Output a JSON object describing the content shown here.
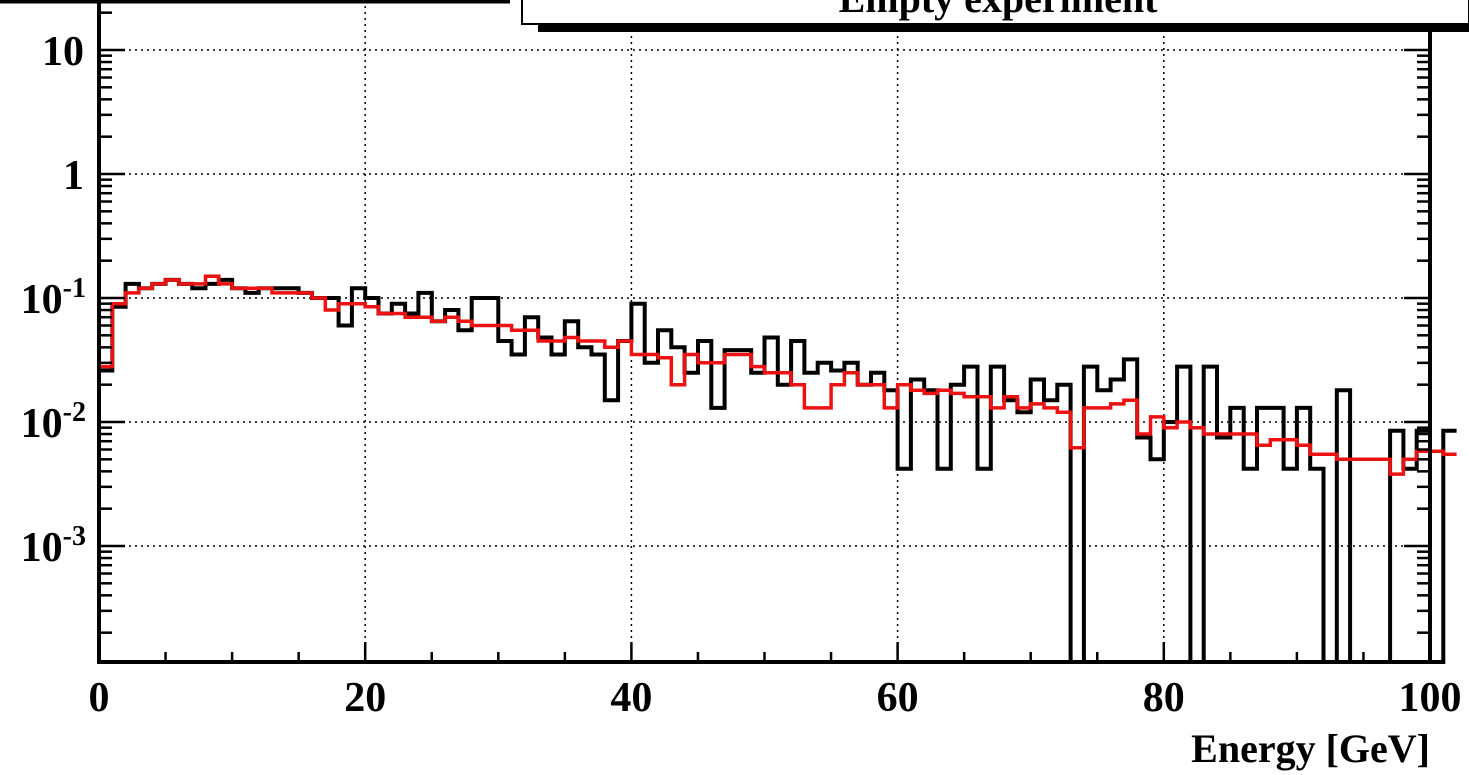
{
  "chart_data": {
    "type": "line",
    "style": "step-histogram",
    "title": "Empty experiment",
    "xlabel": "Energy [GeV]",
    "ylabel": "",
    "xlim": [
      0,
      100
    ],
    "ylim": [
      0.0001,
      20
    ],
    "yscale": "log",
    "grid": true,
    "x_ticks": [
      {
        "value": 0,
        "label": "0"
      },
      {
        "value": 20,
        "label": "20"
      },
      {
        "value": 40,
        "label": "40"
      },
      {
        "value": 60,
        "label": "60"
      },
      {
        "value": 80,
        "label": "80"
      },
      {
        "value": 100,
        "label": "100"
      }
    ],
    "y_ticks": [
      {
        "value": 10,
        "base": "10",
        "exp": ""
      },
      {
        "value": 1,
        "base": "1",
        "exp": ""
      },
      {
        "value": 0.1,
        "base": "10",
        "exp": "-1"
      },
      {
        "value": 0.01,
        "base": "10",
        "exp": "-2"
      },
      {
        "value": 0.001,
        "base": "10",
        "exp": "-3"
      }
    ],
    "bin_width": 1,
    "series": [
      {
        "color": "#000000",
        "values": [
          0.026,
          0.085,
          0.13,
          0.12,
          0.13,
          0.14,
          0.13,
          0.12,
          0.13,
          0.14,
          0.12,
          0.11,
          0.12,
          0.12,
          0.12,
          0.11,
          0.1,
          0.1,
          0.06,
          0.12,
          0.1,
          0.075,
          0.09,
          0.075,
          0.11,
          0.065,
          0.08,
          0.055,
          0.1,
          0.1,
          0.045,
          0.035,
          0.07,
          0.048,
          0.035,
          0.065,
          0.04,
          0.035,
          0.015,
          0.045,
          0.09,
          0.03,
          0.055,
          0.04,
          0.025,
          0.045,
          0.013,
          0.038,
          0.038,
          0.025,
          0.048,
          0.02,
          0.045,
          0.025,
          0.03,
          0.026,
          0.03,
          0.02,
          0.025,
          0.018,
          0.0042,
          0.022,
          0.018,
          0.0042,
          0.02,
          0.028,
          0.0042,
          0.028,
          0.015,
          0.012,
          0.022,
          0.015,
          0.02,
          0.0001,
          0.028,
          0.018,
          0.022,
          0.032,
          0.0075,
          0.005,
          0.01,
          0.028,
          0.0001,
          0.028,
          0.0075,
          0.013,
          0.0042,
          0.013,
          0.013,
          0.0042,
          0.013,
          0.0042,
          0.0001,
          0.018,
          0.0001,
          0.0001,
          0.0001,
          0.0085,
          0.0042,
          0.0085,
          0.0001,
          0.0085
        ]
      },
      {
        "color": "#ee1111",
        "values": [
          0.028,
          0.09,
          0.11,
          0.12,
          0.13,
          0.14,
          0.13,
          0.13,
          0.15,
          0.13,
          0.12,
          0.12,
          0.12,
          0.11,
          0.11,
          0.11,
          0.1,
          0.08,
          0.09,
          0.09,
          0.085,
          0.075,
          0.075,
          0.07,
          0.07,
          0.065,
          0.07,
          0.065,
          0.06,
          0.06,
          0.06,
          0.055,
          0.055,
          0.045,
          0.045,
          0.048,
          0.045,
          0.045,
          0.04,
          0.045,
          0.035,
          0.035,
          0.033,
          0.02,
          0.035,
          0.03,
          0.03,
          0.035,
          0.035,
          0.028,
          0.025,
          0.025,
          0.02,
          0.013,
          0.013,
          0.02,
          0.025,
          0.02,
          0.02,
          0.013,
          0.02,
          0.018,
          0.017,
          0.018,
          0.017,
          0.016,
          0.016,
          0.013,
          0.016,
          0.013,
          0.014,
          0.013,
          0.012,
          0.0062,
          0.013,
          0.013,
          0.014,
          0.015,
          0.008,
          0.011,
          0.009,
          0.01,
          0.009,
          0.008,
          0.008,
          0.008,
          0.008,
          0.0065,
          0.0072,
          0.0072,
          0.0065,
          0.0055,
          0.0055,
          0.005,
          0.005,
          0.005,
          0.005,
          0.0038,
          0.005,
          0.0058,
          0.0058,
          0.0055
        ]
      }
    ]
  }
}
